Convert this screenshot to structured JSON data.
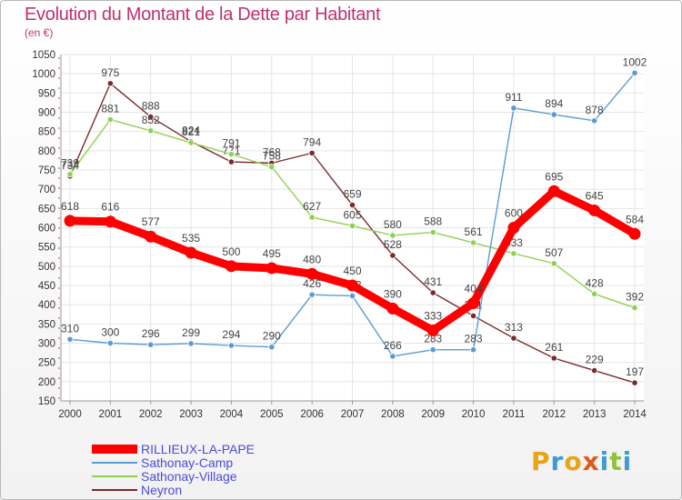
{
  "chart_data": {
    "type": "line",
    "title": "Evolution du Montant de la Dette par Habitant",
    "subtitle": "(en €)",
    "xlabel": "",
    "ylabel": "",
    "x": [
      "2000",
      "2001",
      "2002",
      "2003",
      "2004",
      "2005",
      "2006",
      "2007",
      "2008",
      "2009",
      "2010",
      "2011",
      "2012",
      "2013",
      "2014"
    ],
    "ylim": [
      150,
      1050
    ],
    "yticks": [
      150,
      200,
      250,
      300,
      350,
      400,
      450,
      500,
      550,
      600,
      650,
      700,
      750,
      800,
      850,
      900,
      950,
      1000,
      1050
    ],
    "grid": true,
    "legend_position": "bottom-left",
    "series": [
      {
        "name": "RILLIEUX-LA-PAPE",
        "color": "#ff0000",
        "values": [
          618,
          616,
          577,
          535,
          500,
          495,
          480,
          450,
          390,
          333,
          404,
          600,
          695,
          645,
          584
        ]
      },
      {
        "name": "Sathonay-Camp",
        "color": "#5b9bd5",
        "values": [
          310,
          300,
          296,
          299,
          294,
          290,
          426,
          423,
          266,
          283,
          283,
          911,
          894,
          878,
          1002
        ]
      },
      {
        "name": "Sathonay-Village",
        "color": "#8fd14f",
        "values": [
          739,
          881,
          852,
          821,
          791,
          758,
          627,
          605,
          580,
          588,
          561,
          533,
          507,
          428,
          392
        ]
      },
      {
        "name": "Neyron",
        "color": "#7b2a2a",
        "values": [
          734,
          975,
          888,
          824,
          771,
          768,
          794,
          659,
          528,
          431,
          371,
          313,
          261,
          229,
          197
        ]
      }
    ]
  },
  "logo": {
    "letters": [
      "P",
      "r",
      "o",
      "x",
      "i",
      "t",
      "i"
    ],
    "colors": [
      "#e8a317",
      "#3f9bd8",
      "#e8a317",
      "#e05a1c",
      "#3f9bd8",
      "#8fc43a",
      "#3f9bd8"
    ]
  }
}
